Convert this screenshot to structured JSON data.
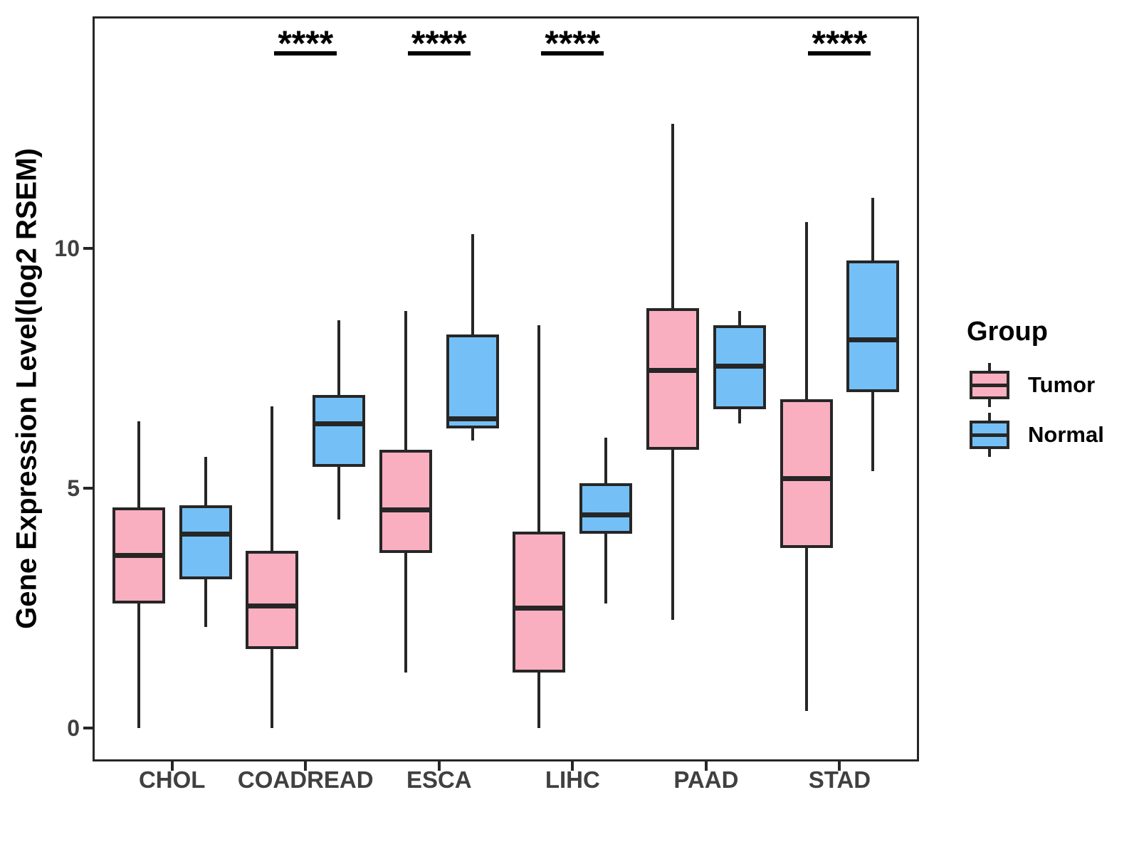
{
  "chart_data": {
    "type": "boxplot",
    "title": "",
    "xlabel": "",
    "ylabel": "Gene Expression Level(log2 RSEM)",
    "ylim": [
      -0.7,
      14.8
    ],
    "yticks": [
      "0",
      "5",
      "10"
    ],
    "ytick_values": [
      0,
      5,
      10
    ],
    "grid": false,
    "legend_position": "right",
    "categories": [
      "CHOL",
      "COADREAD",
      "ESCA",
      "LIHC",
      "PAAD",
      "STAD"
    ],
    "series": [
      {
        "name": "Tumor",
        "color": "#FAAFC0",
        "stat_order": [
          "whisker_low",
          "q1",
          "median",
          "q3",
          "whisker_high"
        ],
        "values": [
          [
            0.0,
            2.6,
            3.6,
            4.6,
            6.4
          ],
          [
            0.0,
            1.65,
            2.55,
            3.7,
            6.7
          ],
          [
            1.15,
            3.65,
            4.55,
            5.8,
            8.7
          ],
          [
            0.0,
            1.15,
            2.5,
            4.1,
            8.4
          ],
          [
            2.25,
            5.8,
            7.45,
            8.75,
            12.6
          ],
          [
            0.35,
            3.75,
            5.2,
            6.85,
            10.55
          ]
        ]
      },
      {
        "name": "Normal",
        "color": "#74C0F6",
        "stat_order": [
          "whisker_low",
          "q1",
          "median",
          "q3",
          "whisker_high"
        ],
        "values": [
          [
            2.1,
            3.1,
            4.05,
            4.65,
            5.65
          ],
          [
            4.35,
            5.45,
            6.35,
            6.95,
            8.5
          ],
          [
            6.0,
            6.25,
            6.45,
            8.2,
            10.3
          ],
          [
            2.6,
            4.05,
            4.45,
            5.1,
            6.05
          ],
          [
            6.35,
            6.65,
            7.55,
            8.4,
            8.7
          ],
          [
            5.35,
            7.0,
            8.1,
            9.75,
            11.05
          ]
        ]
      }
    ],
    "significance": [
      {
        "category": "COADREAD",
        "label": "****"
      },
      {
        "category": "ESCA",
        "label": "****"
      },
      {
        "category": "LIHC",
        "label": "****"
      },
      {
        "category": "STAD",
        "label": "****"
      }
    ],
    "stroke_color": "#262626",
    "axis_text_color": "#404040"
  },
  "legend": {
    "title": "Group",
    "items": [
      {
        "label": "Tumor",
        "color": "#FAAFC0"
      },
      {
        "label": "Normal",
        "color": "#74C0F6"
      }
    ]
  }
}
